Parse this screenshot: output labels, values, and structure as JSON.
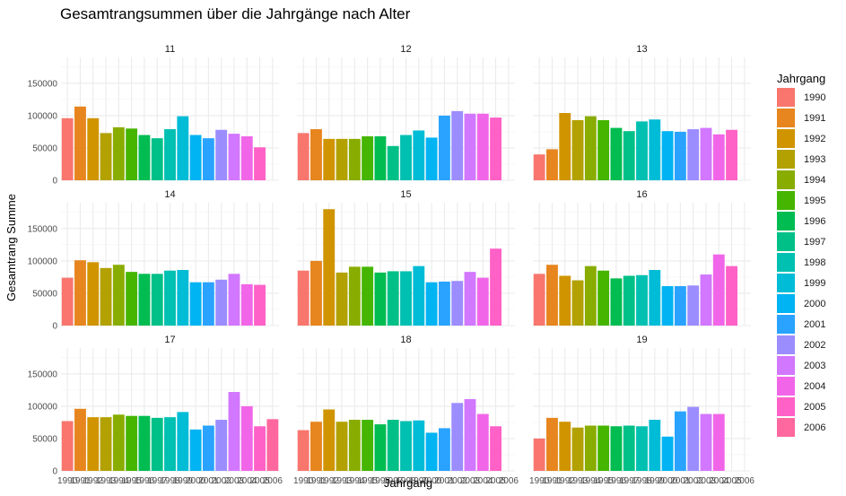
{
  "chart_data": {
    "type": "bar",
    "title": "Gesamtrangsummen über die Jahrgänge nach Alter",
    "xlabel": "Jahrgang",
    "ylabel": "Gesamtrang Summe",
    "ylim": [
      0,
      190000
    ],
    "yticks": [
      0,
      50000,
      100000,
      150000
    ],
    "ytick_labels": [
      "0",
      "50000",
      "100000",
      "150000"
    ],
    "categories": [
      "1990",
      "1991",
      "1992",
      "1993",
      "1994",
      "1995",
      "1996",
      "1997",
      "1998",
      "1999",
      "2000",
      "2001",
      "2002",
      "2003",
      "2004",
      "2005",
      "2006"
    ],
    "colors": [
      "#F8766D",
      "#E7851E",
      "#D09400",
      "#B2A100",
      "#89AC00",
      "#45B500",
      "#00BC51",
      "#00C087",
      "#00C0B2",
      "#00BCD6",
      "#00B3F2",
      "#29A3FF",
      "#9C8DFF",
      "#D277FF",
      "#F166E8",
      "#FF61C7",
      "#FF689E"
    ],
    "grid": true,
    "legend": {
      "title": "Jahrgang",
      "position": "right"
    },
    "panels": [
      {
        "label": "11",
        "values": [
          96000,
          114000,
          96000,
          73000,
          82000,
          80000,
          70000,
          65000,
          79000,
          99000,
          70000,
          65000,
          78000,
          72000,
          68000,
          51000,
          null
        ]
      },
      {
        "label": "12",
        "values": [
          73000,
          79000,
          64000,
          64000,
          64000,
          68000,
          68000,
          53000,
          70000,
          77000,
          66000,
          100000,
          107000,
          103000,
          103000,
          97000,
          null
        ]
      },
      {
        "label": "13",
        "values": [
          40000,
          48000,
          104000,
          93000,
          99000,
          93000,
          81000,
          76000,
          91000,
          94000,
          76000,
          75000,
          79000,
          81000,
          71000,
          78000,
          null
        ]
      },
      {
        "label": "14",
        "values": [
          74000,
          101000,
          98000,
          89000,
          94000,
          83000,
          80000,
          80000,
          85000,
          86000,
          67000,
          67000,
          71000,
          80000,
          64000,
          63000,
          null
        ]
      },
      {
        "label": "15",
        "values": [
          85000,
          100000,
          180000,
          82000,
          91000,
          91000,
          82000,
          84000,
          84000,
          92000,
          67000,
          68000,
          69000,
          83000,
          74000,
          119000,
          null
        ]
      },
      {
        "label": "16",
        "values": [
          80000,
          94000,
          77000,
          70000,
          92000,
          85000,
          73000,
          77000,
          78000,
          86000,
          61000,
          61000,
          62000,
          79000,
          110000,
          92000,
          null
        ]
      },
      {
        "label": "17",
        "values": [
          77000,
          96000,
          83000,
          83000,
          87000,
          85000,
          85000,
          82000,
          83000,
          91000,
          64000,
          70000,
          79000,
          122000,
          100000,
          69000,
          80000
        ]
      },
      {
        "label": "18",
        "values": [
          63000,
          76000,
          95000,
          76000,
          79000,
          79000,
          72000,
          79000,
          77000,
          78000,
          59000,
          66000,
          105000,
          111000,
          88000,
          69000,
          null
        ]
      },
      {
        "label": "19",
        "values": [
          50000,
          82000,
          76000,
          67000,
          70000,
          70000,
          69000,
          70000,
          69000,
          79000,
          53000,
          92000,
          99000,
          88000,
          88000,
          null,
          null
        ]
      }
    ]
  }
}
